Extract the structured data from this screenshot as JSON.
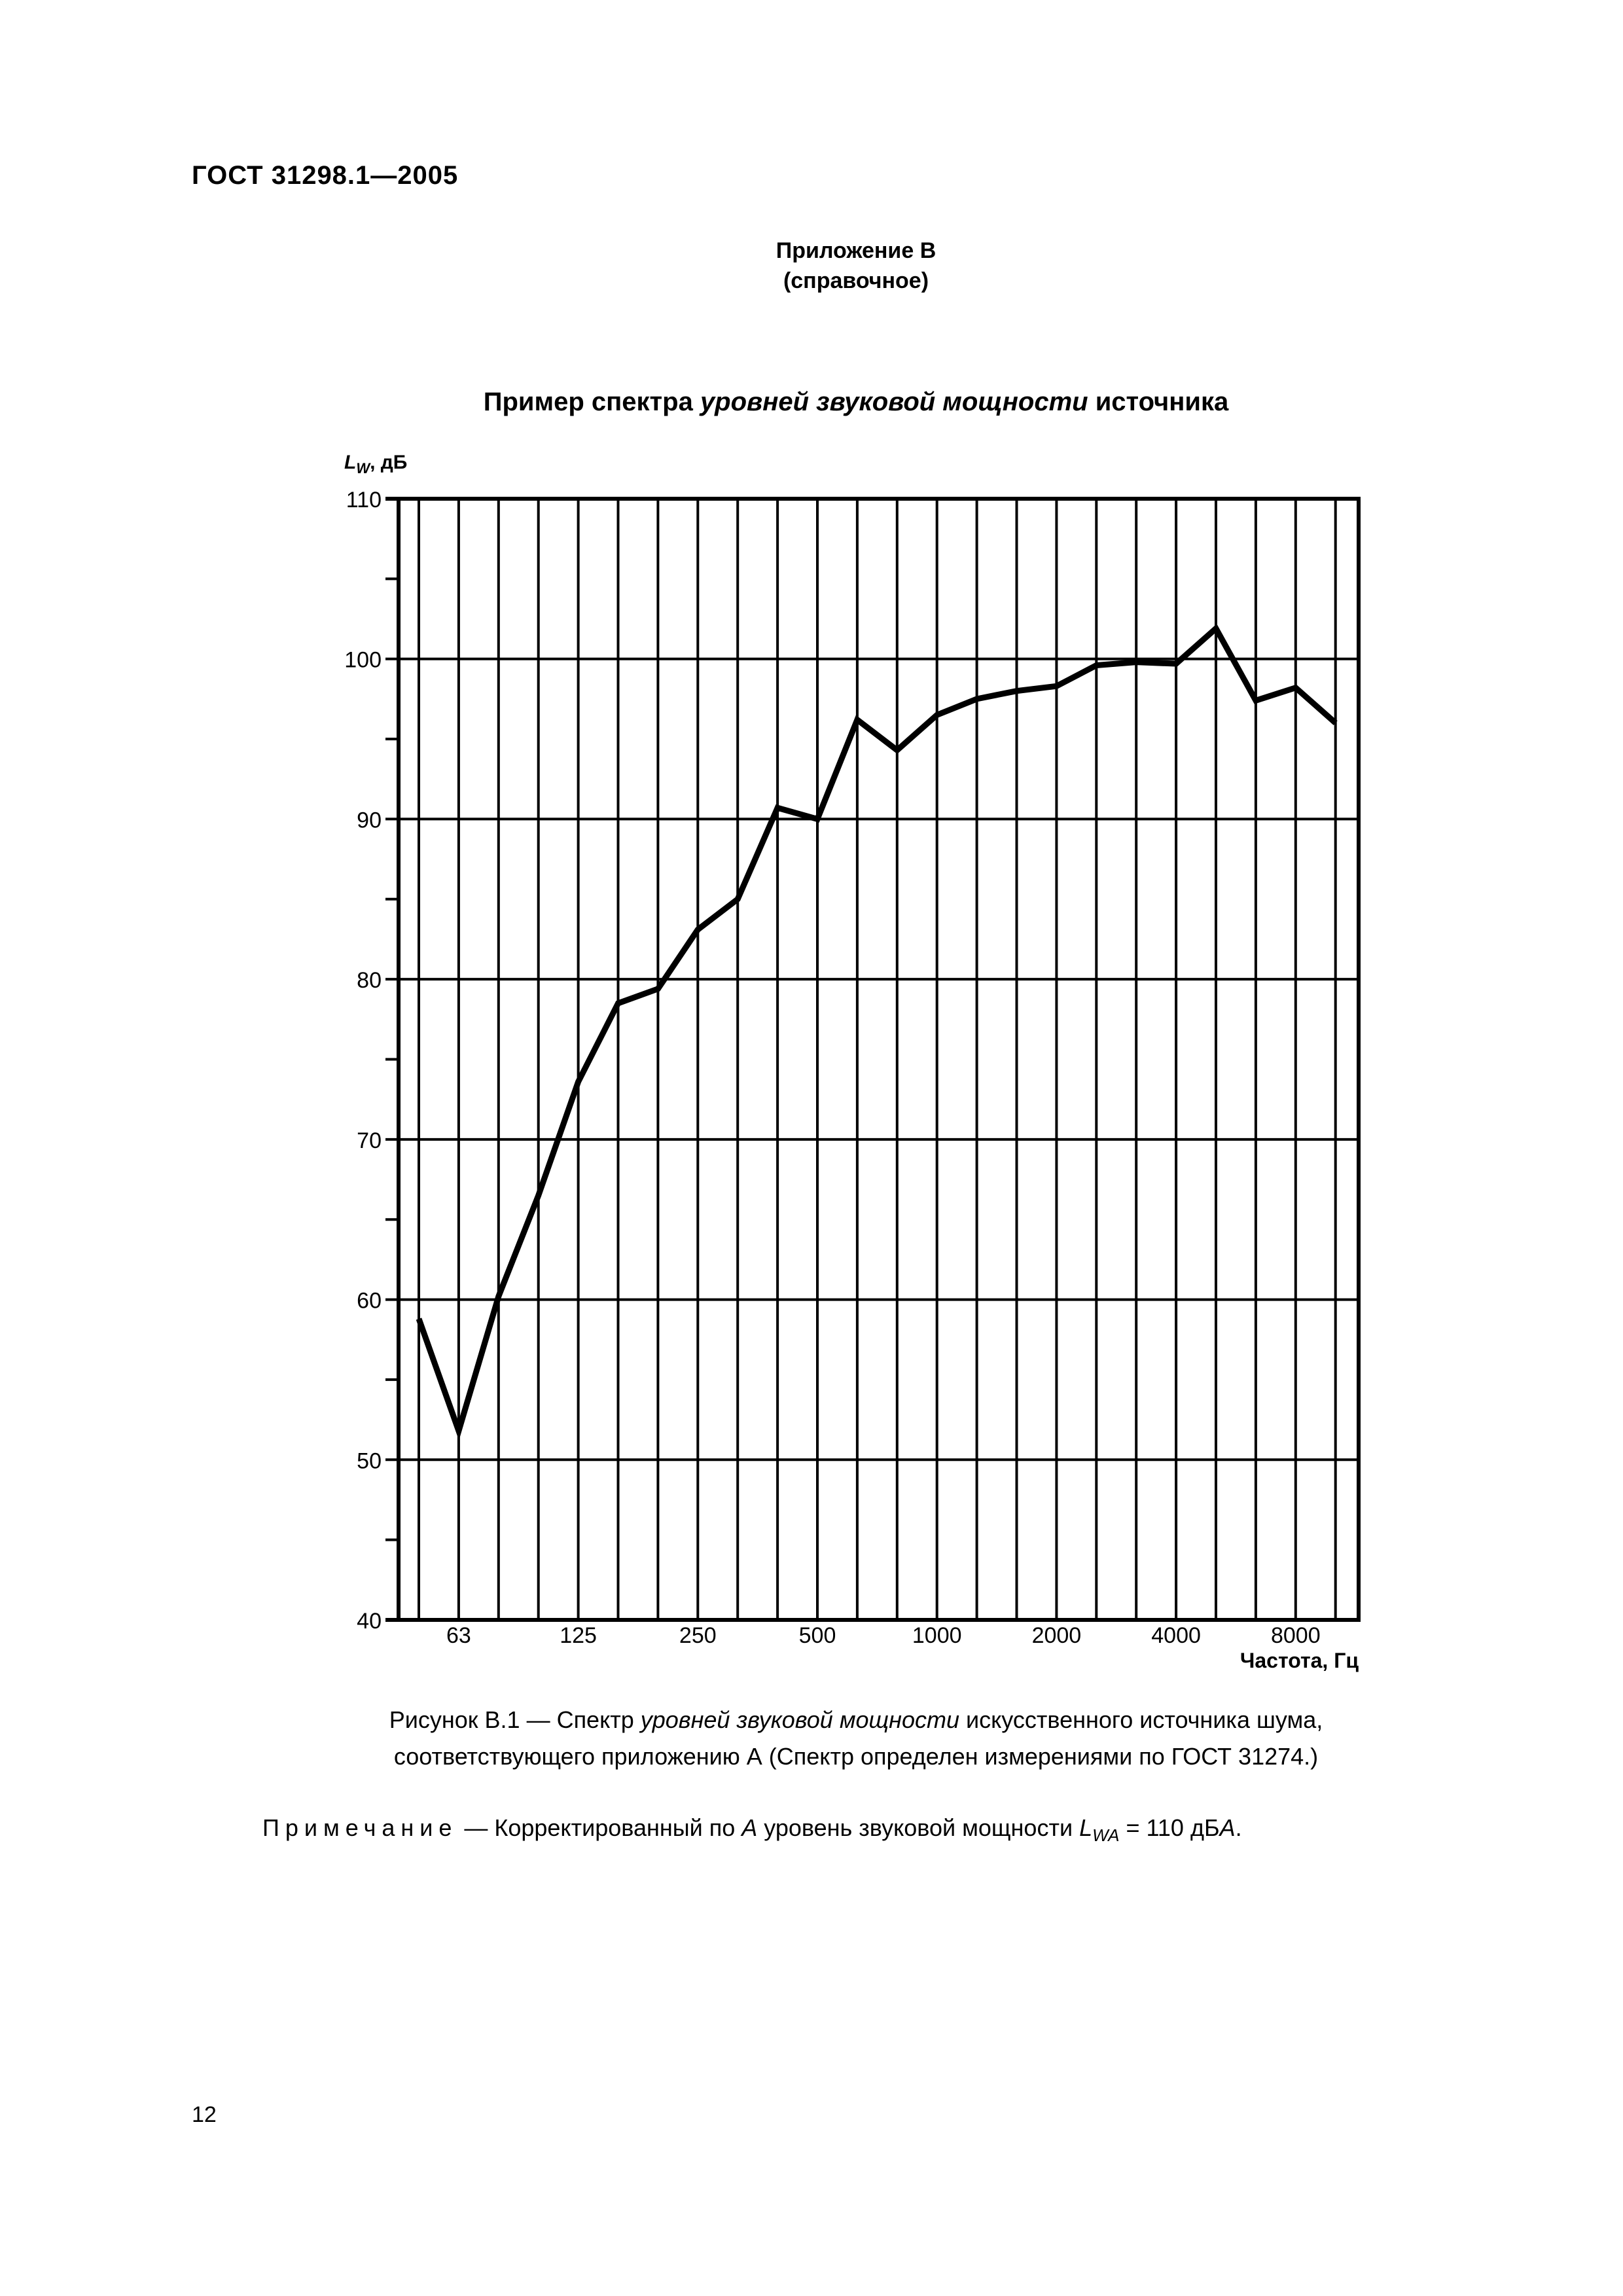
{
  "header": {
    "standard_id": "ГОСТ  31298.1—2005"
  },
  "annex": {
    "title": "Приложение В",
    "type": "(справочное)"
  },
  "figure_title": {
    "part1": "Пример спектра ",
    "part2_italic": "уровней звуковой мощности",
    "part3": " источника"
  },
  "y_axis_label": {
    "symbol": "L",
    "subscript": "W",
    "unit": ", дБ"
  },
  "x_axis_label": "Частота, Гц",
  "caption": {
    "line1_a": "Рисунок В.1 — Спектр ",
    "line1_b_italic": "уровней звуковой мощности",
    "line1_c": " искусственного источника шума,",
    "line2": "соответствующего приложению А (Спектр определен измерениями по ГОСТ 31274.)"
  },
  "note": {
    "label": "Примечание",
    "text_a": " — Корректированный по ",
    "text_b_italic": "А",
    "text_c": " уровень звуковой мощности ",
    "symbol": "L",
    "subscript": "WA",
    "text_d": " = 110 дБ",
    "text_e_italic": "А",
    "text_f": "."
  },
  "page_number": "12",
  "chart_data": {
    "type": "line",
    "title": "Пример спектра уровней звуковой мощности источника",
    "xlabel": "Частота, Гц",
    "ylabel": "LW, дБ",
    "ylim": [
      40,
      110
    ],
    "yticks": [
      40,
      50,
      60,
      70,
      80,
      90,
      100,
      110
    ],
    "xtick_labels": [
      "63",
      "125",
      "250",
      "500",
      "1000",
      "2000",
      "4000",
      "8000"
    ],
    "grid": true,
    "x": [
      50,
      63,
      80,
      100,
      125,
      160,
      200,
      250,
      315,
      400,
      500,
      630,
      800,
      1000,
      1250,
      1600,
      2000,
      2500,
      3150,
      4000,
      5000,
      6300,
      8000,
      10000
    ],
    "series": [
      {
        "name": "LW",
        "values": [
          58.8,
          51.8,
          60.2,
          66.5,
          73.6,
          78.5,
          79.4,
          83.1,
          85.0,
          90.7,
          90.0,
          96.2,
          94.3,
          96.5,
          97.5,
          98.0,
          98.3,
          99.6,
          99.8,
          99.7,
          101.9,
          97.4,
          98.2,
          96.0
        ]
      }
    ]
  }
}
